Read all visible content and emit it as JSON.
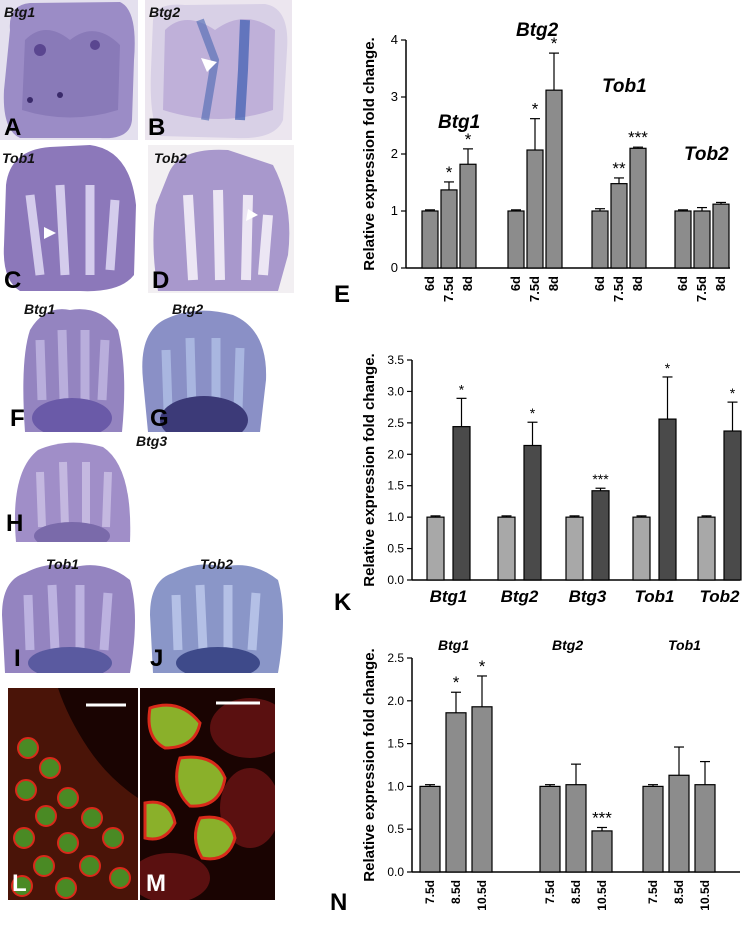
{
  "photos": {
    "A": {
      "label": "A",
      "gene": "Btg1"
    },
    "B": {
      "label": "B",
      "gene": "Btg2"
    },
    "C": {
      "label": "C",
      "gene": "Tob1"
    },
    "D": {
      "label": "D",
      "gene": "Tob2"
    },
    "F": {
      "label": "F",
      "gene": "Btg1"
    },
    "G": {
      "label": "G",
      "gene": "Btg2"
    },
    "H": {
      "label": "H",
      "gene": "Btg3"
    },
    "I": {
      "label": "I",
      "gene": "Tob1"
    },
    "J": {
      "label": "J",
      "gene": "Tob2"
    },
    "L": {
      "label": "L"
    },
    "M": {
      "label": "M"
    }
  },
  "colors": {
    "stain_purple": "#8e7ab8",
    "stain_blue": "#4a6fb8",
    "bar_light": "#a0a0a0",
    "bar_dark": "#4a4a4a",
    "bar_mid": "#888888",
    "membrane_red": "#d82a1a",
    "nucleus_green": "#5aa02a"
  },
  "chart_data": [
    {
      "panel": "E",
      "type": "bar",
      "ylabel": "Relative expression fold change.",
      "ylim": [
        0,
        4
      ],
      "yticks": [
        "0",
        "1",
        "2",
        "3",
        "4"
      ],
      "groups": [
        {
          "name": "Btg1",
          "categories": [
            "6d",
            "7.5d",
            "8d"
          ],
          "values": [
            1.0,
            1.37,
            1.82
          ],
          "errors": [
            0.02,
            0.14,
            0.27
          ],
          "sig": [
            "",
            "*",
            "*"
          ]
        },
        {
          "name": "Btg2",
          "categories": [
            "6d",
            "7.5d",
            "8d"
          ],
          "values": [
            1.0,
            2.07,
            3.12
          ],
          "errors": [
            0.02,
            0.55,
            0.65
          ],
          "sig": [
            "",
            "*",
            "*"
          ]
        },
        {
          "name": "Tob1",
          "categories": [
            "6d",
            "7.5d",
            "8d"
          ],
          "values": [
            1.0,
            1.48,
            2.1
          ],
          "errors": [
            0.04,
            0.1,
            0.02
          ],
          "sig": [
            "",
            "**",
            "***"
          ]
        },
        {
          "name": "Tob2",
          "categories": [
            "6d",
            "7.5d",
            "8d"
          ],
          "values": [
            1.0,
            1.0,
            1.12
          ],
          "errors": [
            0.02,
            0.06,
            0.03
          ],
          "sig": [
            "",
            "",
            ""
          ]
        }
      ]
    },
    {
      "panel": "K",
      "type": "bar",
      "ylabel": "Relative expression fold change.",
      "ylim": [
        0,
        3.5
      ],
      "yticks": [
        "0.0",
        "0.5",
        "1.0",
        "1.5",
        "2.0",
        "2.5",
        "3.0",
        "3.5"
      ],
      "categories": [
        "Btg1",
        "Btg2",
        "Btg3",
        "Tob1",
        "Tob2"
      ],
      "series": [
        {
          "values": [
            1.0,
            1.0,
            1.0,
            1.0,
            1.0
          ],
          "errors": [
            0.02,
            0.02,
            0.02,
            0.02,
            0.02
          ]
        },
        {
          "values": [
            2.44,
            2.14,
            1.42,
            2.56,
            2.37
          ],
          "errors": [
            0.45,
            0.37,
            0.04,
            0.67,
            0.46
          ],
          "sig": [
            "*",
            "*",
            "***",
            "*",
            "*"
          ]
        }
      ]
    },
    {
      "panel": "N",
      "type": "bar",
      "ylabel": "Relative expression fold change.",
      "ylim": [
        0,
        2.5
      ],
      "yticks": [
        "0.0",
        "0.5",
        "1.0",
        "1.5",
        "2.0",
        "2.5"
      ],
      "groups": [
        {
          "name": "Btg1",
          "categories": [
            "7.5d",
            "8.5d",
            "10.5d"
          ],
          "values": [
            1.0,
            1.86,
            1.93
          ],
          "errors": [
            0.02,
            0.24,
            0.36
          ],
          "sig": [
            "",
            "*",
            "*"
          ]
        },
        {
          "name": "Btg2",
          "categories": [
            "7.5d",
            "8.5d",
            "10.5d"
          ],
          "values": [
            1.0,
            1.02,
            0.48
          ],
          "errors": [
            0.02,
            0.24,
            0.04
          ],
          "sig": [
            "",
            "",
            "***"
          ]
        },
        {
          "name": "Tob1",
          "categories": [
            "7.5d",
            "8.5d",
            "10.5d"
          ],
          "values": [
            1.0,
            1.13,
            1.02
          ],
          "errors": [
            0.02,
            0.33,
            0.27
          ],
          "sig": [
            "",
            "",
            ""
          ]
        }
      ]
    }
  ]
}
